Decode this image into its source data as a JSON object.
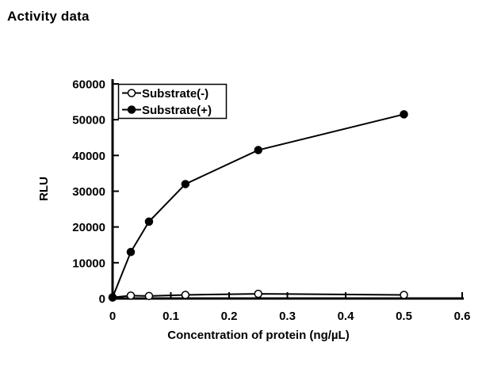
{
  "page": {
    "title": "Activity data",
    "background": "#ffffff",
    "ink_color": "#000000"
  },
  "chart_data": {
    "type": "line",
    "title": "Activity data",
    "xlabel": "Concentration of protein (ng/µL)",
    "ylabel": "RLU",
    "xlim": [
      0,
      0.6
    ],
    "ylim": [
      0,
      60000
    ],
    "xticks": [
      0,
      0.1,
      0.2,
      0.3,
      0.4,
      0.5,
      0.6
    ],
    "yticks": [
      0,
      10000,
      20000,
      30000,
      40000,
      50000,
      60000
    ],
    "grid": false,
    "legend_position": "top-left-inside",
    "line_color": "#000000",
    "marker_size_px": 9,
    "x": [
      0,
      0.03125,
      0.0625,
      0.125,
      0.25,
      0.5
    ],
    "series": [
      {
        "name": "Substrate(-)",
        "marker": "open-circle",
        "values": [
          300,
          800,
          700,
          1000,
          1300,
          1000
        ]
      },
      {
        "name": "Substrate(+)",
        "marker": "filled-circle",
        "values": [
          300,
          13000,
          21500,
          32000,
          41500,
          51500
        ]
      }
    ]
  }
}
